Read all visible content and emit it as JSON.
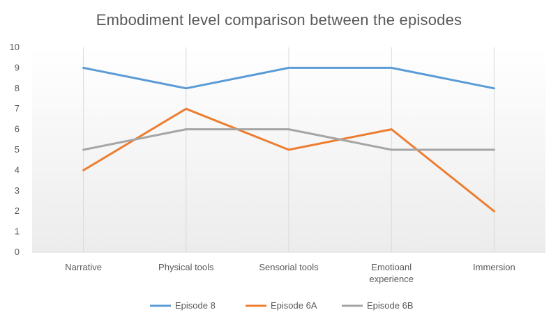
{
  "chart_data": {
    "type": "line",
    "title": "Embodiment level comparison between the episodes",
    "categories": [
      [
        "Narrative"
      ],
      [
        "Physical tools"
      ],
      [
        "Sensorial tools"
      ],
      [
        "Emotioanl",
        "experience"
      ],
      [
        "Immersion"
      ]
    ],
    "series": [
      {
        "name": "Episode 8",
        "color": "#5b9bd5",
        "values": [
          9,
          8,
          9,
          9,
          8
        ]
      },
      {
        "name": "Episode 6A",
        "color": "#ed7d31",
        "values": [
          4,
          7,
          5,
          6,
          2
        ]
      },
      {
        "name": "Episode 6B",
        "color": "#a5a5a5",
        "values": [
          5,
          6,
          6,
          5,
          5
        ]
      }
    ],
    "ylim": [
      0,
      10
    ],
    "yticks": [
      0,
      1,
      2,
      3,
      4,
      5,
      6,
      7,
      8,
      9,
      10
    ],
    "grid": "vertical",
    "legend_position": "bottom"
  }
}
